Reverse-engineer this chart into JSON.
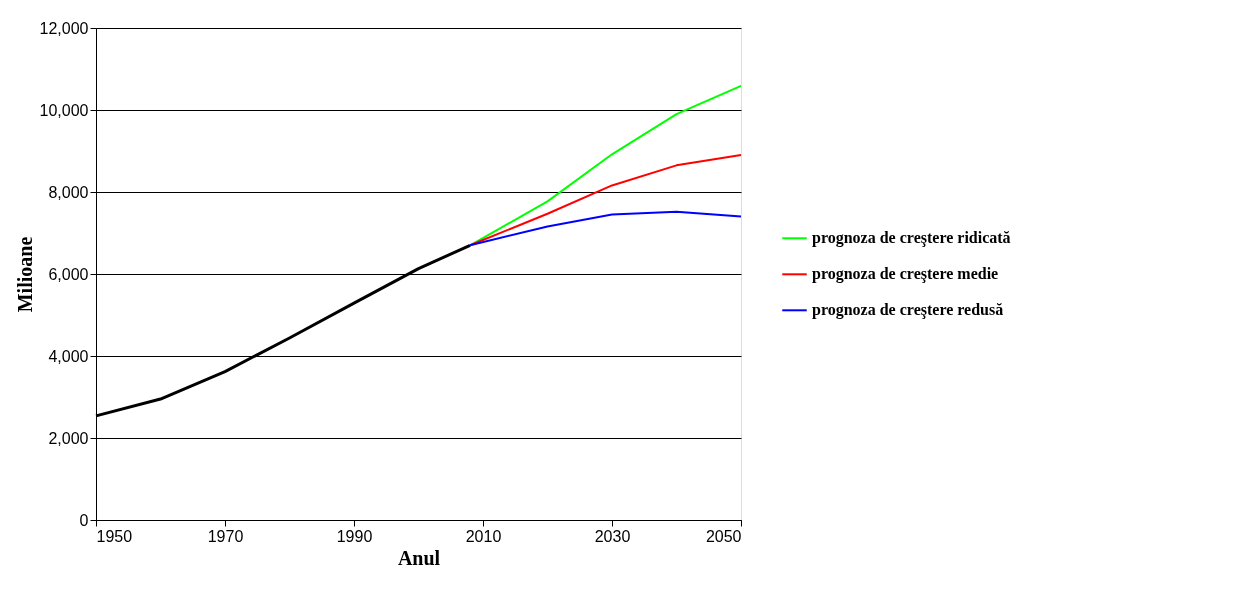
{
  "chart_data": {
    "type": "line",
    "xlabel": "Anul",
    "ylabel": "Milioane",
    "xlim": [
      1950,
      2050
    ],
    "xticks": [
      1950,
      1970,
      1990,
      2010,
      2030,
      2050
    ],
    "ylim": [
      0,
      12000
    ],
    "yticks": [
      0,
      {
        "value": 2000,
        "label": "2,000"
      },
      {
        "value": 4000,
        "label": "4,000"
      },
      {
        "value": 6000,
        "label": "6,000"
      },
      {
        "value": 8000,
        "label": "8,000"
      },
      {
        "value": 10000,
        "label": "10,000"
      },
      {
        "value": 12000,
        "label": "12,000"
      }
    ],
    "grid": "y",
    "legend": "right",
    "series": [
      {
        "color": "#000000",
        "x": [
          1950,
          1960,
          1970,
          1980,
          1990,
          2000,
          2008
        ],
        "values": [
          2540,
          2950,
          3620,
          4440,
          5290,
          6130,
          6700
        ]
      },
      {
        "name": "prognoza de creştere ridicată",
        "color": "#00ff00",
        "x": [
          2008,
          2020,
          2030,
          2040,
          2050
        ],
        "values": [
          6700,
          7770,
          8920,
          9900,
          10590
        ]
      },
      {
        "name": "prognoza de creştere medie",
        "color": "#ff0000",
        "x": [
          2008,
          2020,
          2030,
          2040,
          2050
        ],
        "values": [
          6700,
          7470,
          8160,
          8650,
          8900
        ]
      },
      {
        "name": "prognoza de creştere redusă",
        "color": "#0000ff",
        "x": [
          2008,
          2020,
          2030,
          2040,
          2050
        ],
        "values": [
          6700,
          7160,
          7450,
          7520,
          7400
        ]
      }
    ]
  }
}
